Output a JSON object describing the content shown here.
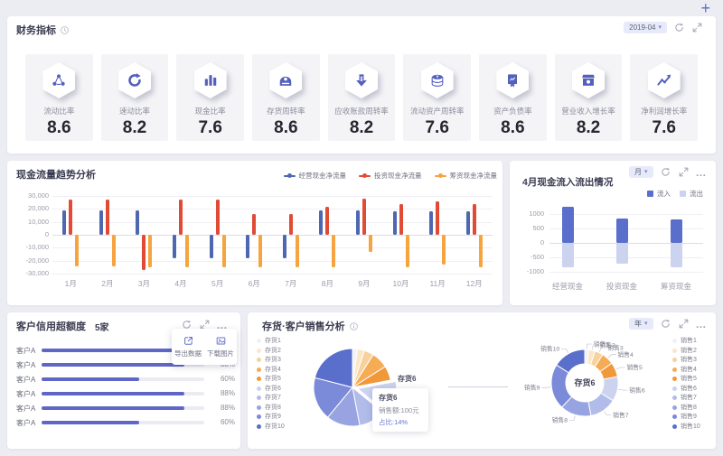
{
  "page": {
    "add_label": "+",
    "background": "#ecedf2",
    "accent": "#5a6ecb"
  },
  "kpi_panel": {
    "title": "财务指标",
    "title_icon": "clock-icon",
    "period": "2019-04",
    "cards": [
      {
        "label": "流动比率",
        "value": "8.6",
        "icon": "share-nodes-icon"
      },
      {
        "label": "速动比率",
        "value": "8.2",
        "icon": "cycle-icon"
      },
      {
        "label": "现金比率",
        "value": "7.6",
        "icon": "bar-chart-icon"
      },
      {
        "label": "存货周转率",
        "value": "8.6",
        "icon": "cash-register-icon"
      },
      {
        "label": "应收账款周转率",
        "value": "8.2",
        "icon": "arrow-down-yen-icon"
      },
      {
        "label": "流动资产周转率",
        "value": "7.6",
        "icon": "coins-icon"
      },
      {
        "label": "资产负债率",
        "value": "8.6",
        "icon": "certificate-icon"
      },
      {
        "label": "营业收入增长率",
        "value": "8.2",
        "icon": "shop-icon"
      },
      {
        "label": "净利润增长率",
        "value": "7.6",
        "icon": "trend-up-icon"
      }
    ]
  },
  "cashflow_panel": {
    "title": "现金流量趋势分析"
  },
  "april_panel": {
    "title": "4月现金流入流出情况",
    "period": "月"
  },
  "credit_panel": {
    "title": "客户信用超额度",
    "count": "5家",
    "menu": [
      {
        "label": "导出数据",
        "icon": "export-icon"
      },
      {
        "label": "下载图片",
        "icon": "image-icon"
      }
    ]
  },
  "inventory_panel": {
    "title": "存货·客户销售分析",
    "title_icon": "info-icon",
    "period": "年",
    "tooltip": {
      "title": "存货6",
      "sales": "销售额:100元",
      "share": "占比:14%"
    },
    "slice_label": "存货6",
    "donut_center": "存货6"
  },
  "chart_data": [
    {
      "type": "bar",
      "title": "现金流量趋势分析",
      "categories": [
        "1月",
        "2月",
        "3月",
        "4月",
        "5月",
        "6月",
        "7月",
        "8月",
        "9月",
        "10月",
        "11月",
        "12月"
      ],
      "series": [
        {
          "name": "经营现金净流量",
          "color": "#4d68b1",
          "values": [
            18500,
            18500,
            18500,
            -18000,
            -18000,
            -18000,
            -18000,
            18500,
            18500,
            18000,
            18000,
            18000
          ]
        },
        {
          "name": "投资现金净流量",
          "color": "#e14b35",
          "values": [
            27000,
            27000,
            -27000,
            27000,
            27000,
            16000,
            16000,
            21500,
            28000,
            24000,
            25500,
            23500
          ]
        },
        {
          "name": "筹资现金净流量",
          "color": "#f5a43f",
          "values": [
            -24500,
            -24500,
            -25000,
            -25000,
            -25000,
            -25000,
            -25000,
            -25000,
            -13000,
            -25000,
            -23000,
            -25000
          ]
        }
      ],
      "ylim": [
        -30000,
        30000
      ],
      "yticks": [
        "30,000",
        "20,000",
        "10,000",
        "0",
        "-10,000",
        "-20,000",
        "-30,000"
      ],
      "grid": true,
      "legend_position": "top"
    },
    {
      "type": "bar",
      "title": "4月现金流入流出情况",
      "categories": [
        "经营现金",
        "投资现金",
        "筹资现金"
      ],
      "series": [
        {
          "name": "流入",
          "color": "#5a6ecb",
          "values": [
            1250,
            850,
            800
          ]
        },
        {
          "name": "流出",
          "color": "#ccd3ee",
          "values": [
            -850,
            -720,
            -850
          ]
        }
      ],
      "ylim": [
        -1000,
        1000
      ],
      "yticks": [
        "1000",
        "500",
        "0",
        "-500",
        "-1000"
      ],
      "grid": true,
      "legend_position": "top-right"
    },
    {
      "type": "bar",
      "orientation": "horizontal",
      "title": "客户信用超额度",
      "categories": [
        "客户A",
        "客户A",
        "客户A",
        "客户A",
        "客户A",
        "客户A"
      ],
      "values": [
        88,
        88,
        60,
        88,
        88,
        60
      ],
      "value_suffix": "%",
      "color": "#5f66c6"
    },
    {
      "type": "pie",
      "labels": [
        "存货1",
        "存货2",
        "存货3",
        "存货4",
        "存货5",
        "存货6",
        "存货7",
        "存货8",
        "存货9",
        "存货10"
      ],
      "values": [
        2,
        3,
        4,
        7,
        6,
        14,
        11,
        14,
        18,
        21
      ],
      "colors": [
        "#f2f2f4",
        "#fbe7c8",
        "#f8d19e",
        "#f6ab55",
        "#f0983a",
        "#ccd3ef",
        "#b2bcea",
        "#98a4e2",
        "#7b8bd9",
        "#5a6ecb"
      ],
      "highlight_label": "存货6"
    },
    {
      "type": "pie",
      "subtype": "donut",
      "labels": [
        "销售1",
        "销售2",
        "销售3",
        "销售4",
        "销售5",
        "销售6",
        "销售7",
        "销售8",
        "销售9",
        "销售10"
      ],
      "values": [
        2,
        3,
        4,
        6,
        7,
        12,
        13,
        15,
        22,
        16
      ],
      "colors": [
        "#f2f2f4",
        "#fbe7c8",
        "#f8d19e",
        "#f6ab55",
        "#f0983a",
        "#ccd3ef",
        "#b2bcea",
        "#98a4e2",
        "#7b8bd9",
        "#5a6ecb"
      ],
      "center_label": "存货6"
    }
  ]
}
